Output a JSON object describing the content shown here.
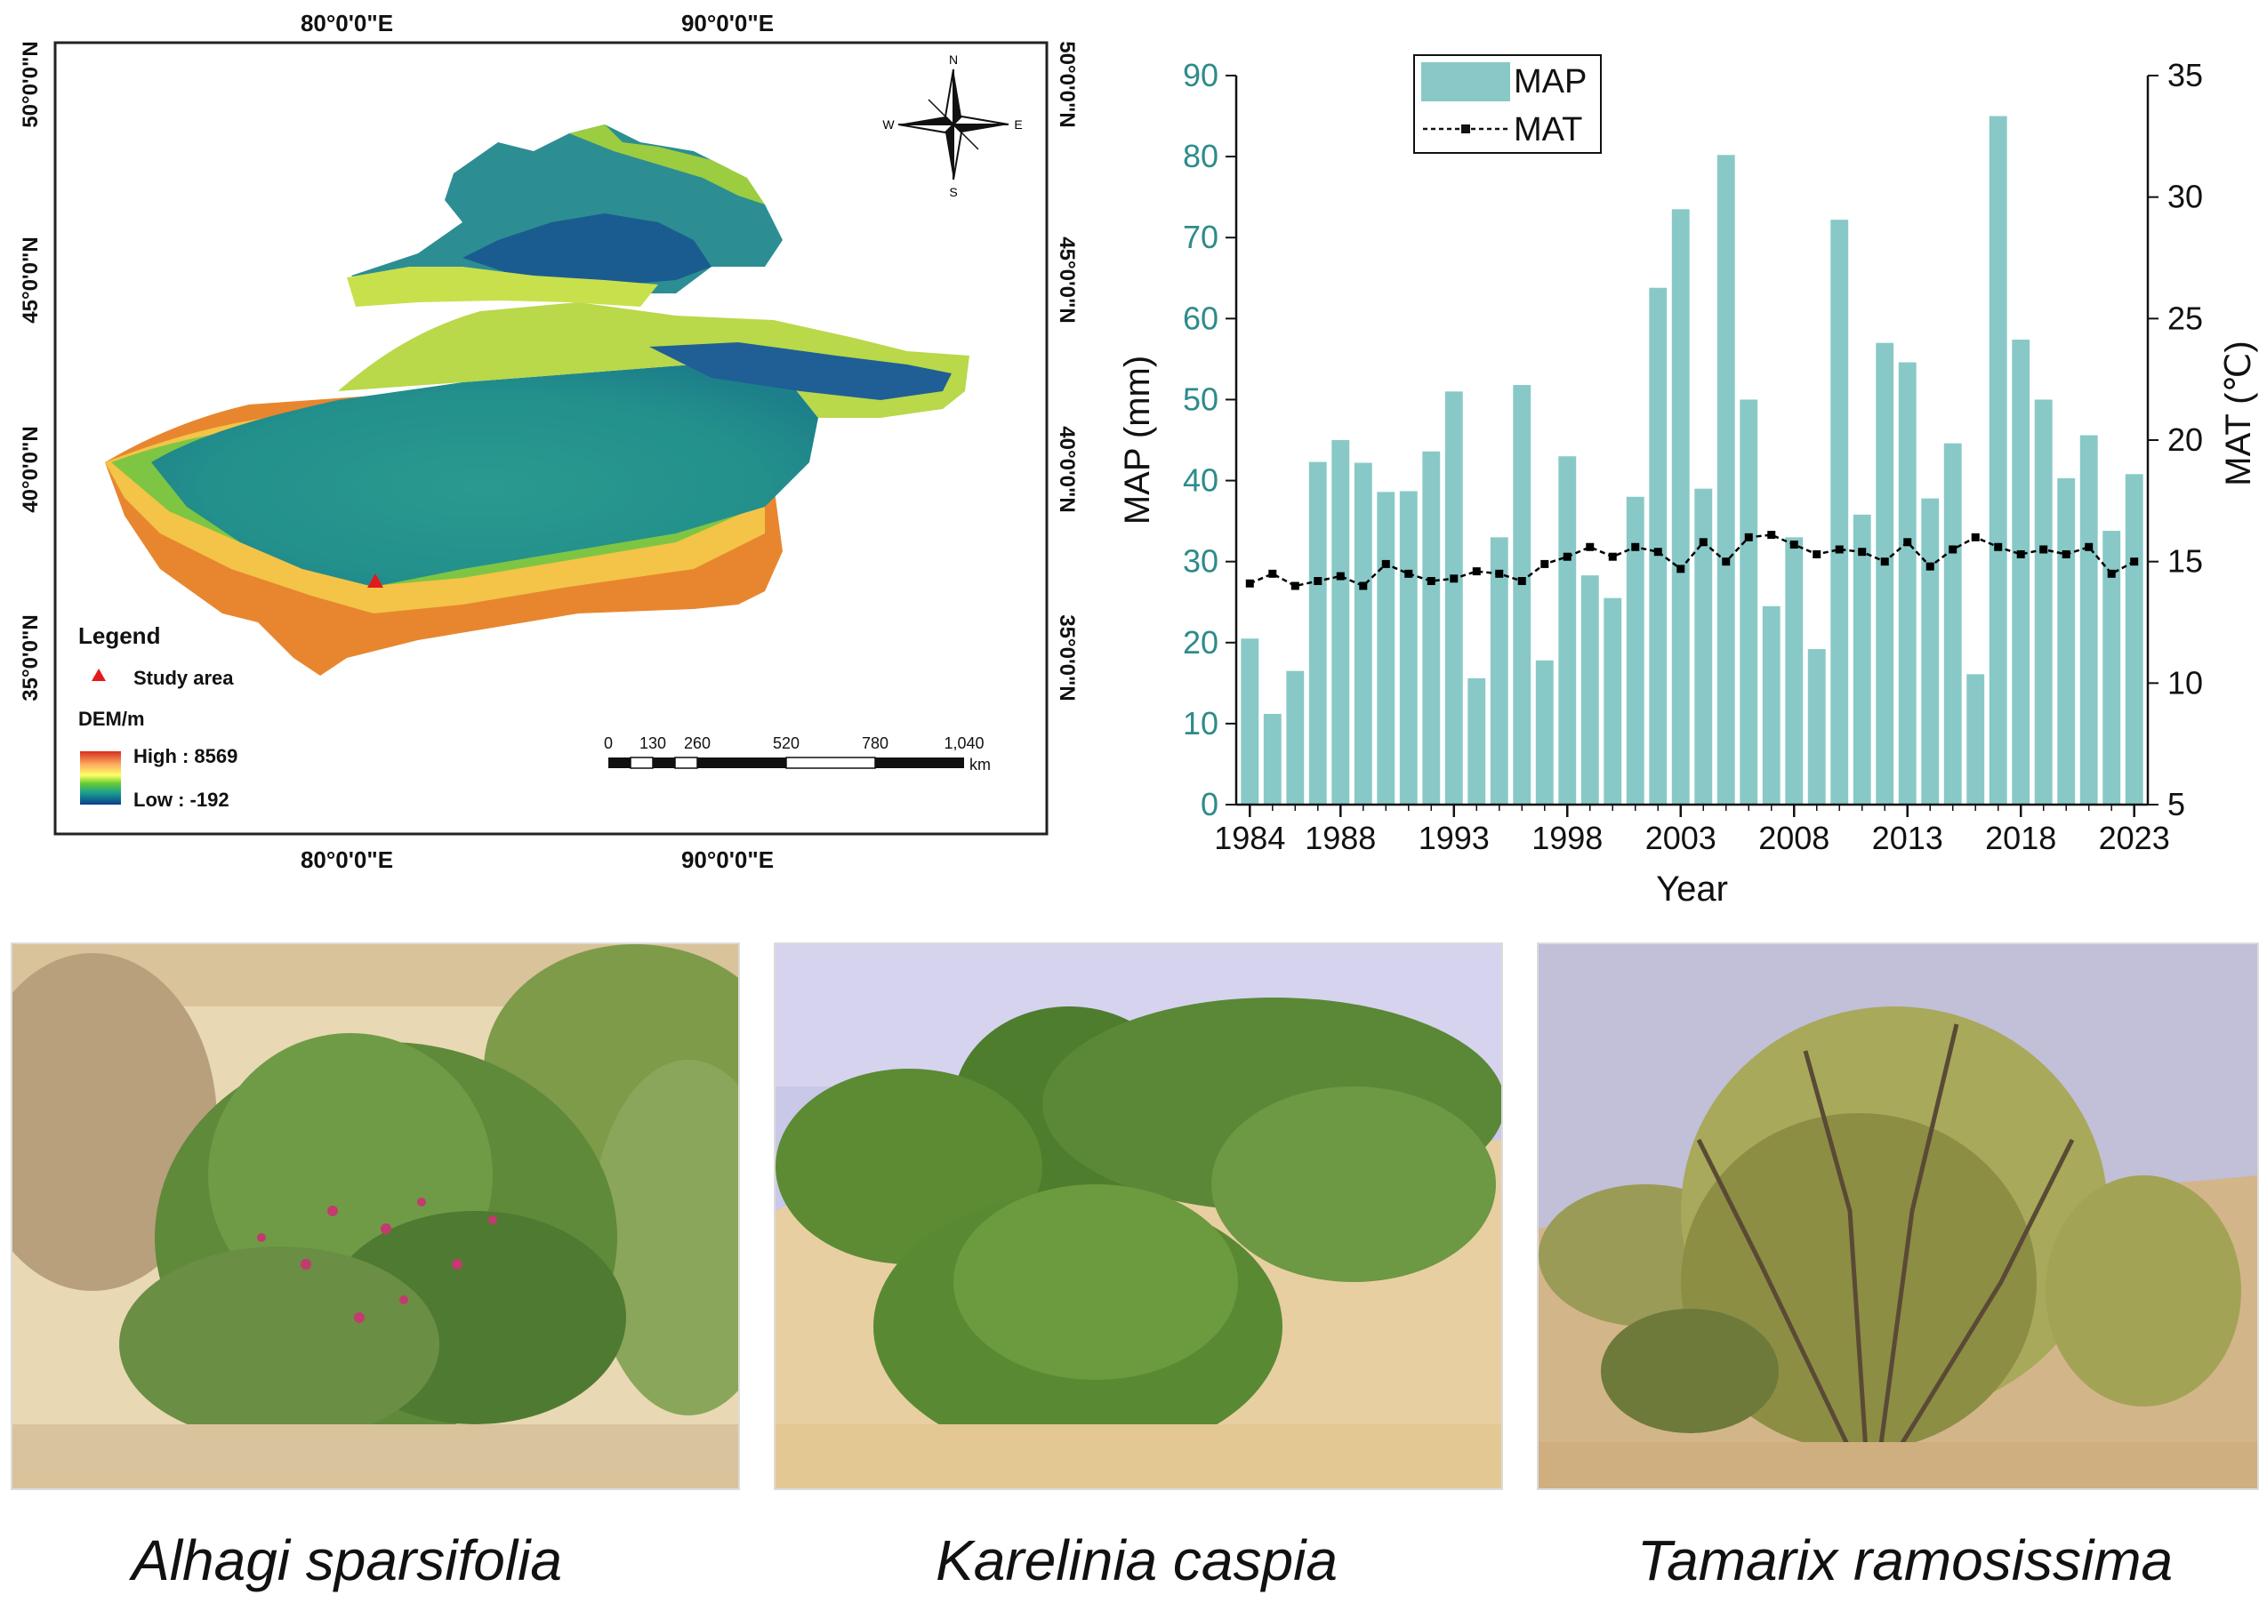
{
  "map": {
    "lon_labels": [
      "80°0'0\"E",
      "90°0'0\"E"
    ],
    "lat_labels": [
      "50°0'0\"N",
      "45°0'0\"N",
      "40°0'0\"N",
      "35°0'0\"N"
    ],
    "compass": {
      "n": "N",
      "s": "S",
      "e": "E",
      "w": "W"
    },
    "legend": {
      "title": "Legend",
      "study_area": "Study area",
      "dem_title": "DEM/m",
      "high": "High : 8569",
      "low": "Low : -192"
    },
    "scalebar": {
      "ticks": [
        "0",
        "130",
        "260",
        "520",
        "780",
        "1,040"
      ],
      "unit": "km"
    },
    "colors": {
      "marker": "#e31a1c",
      "low": "#0b3d8c",
      "high": "#d7301f"
    }
  },
  "chart_data": {
    "type": "bar",
    "x": [
      1984,
      1985,
      1986,
      1987,
      1988,
      1989,
      1990,
      1991,
      1992,
      1993,
      1994,
      1995,
      1996,
      1997,
      1998,
      1999,
      2000,
      2001,
      2002,
      2003,
      2004,
      2005,
      2006,
      2007,
      2008,
      2009,
      2010,
      2011,
      2012,
      2013,
      2014,
      2015,
      2016,
      2017,
      2018,
      2019,
      2020,
      2021,
      2022,
      2023
    ],
    "series": [
      {
        "name": "MAP",
        "axis": "left",
        "type": "bar",
        "color": "#88c9c7",
        "values": [
          20.5,
          11.2,
          16.5,
          42.3,
          45.0,
          42.2,
          38.6,
          38.7,
          43.6,
          51.0,
          15.6,
          33.0,
          51.8,
          17.8,
          43.0,
          28.3,
          25.5,
          38.0,
          63.8,
          73.5,
          39.0,
          80.2,
          50.0,
          24.5,
          33.0,
          19.2,
          72.2,
          35.8,
          57.0,
          54.6,
          37.8,
          44.6,
          16.1,
          85.0,
          57.4,
          50.0,
          40.3,
          45.6,
          33.8,
          40.8
        ]
      },
      {
        "name": "MAT",
        "axis": "right",
        "type": "line",
        "color": "#000000",
        "values": [
          14.1,
          14.5,
          14.0,
          14.2,
          14.4,
          14.0,
          14.9,
          14.5,
          14.2,
          14.3,
          14.6,
          14.5,
          14.2,
          14.9,
          15.2,
          15.6,
          15.2,
          15.6,
          15.4,
          14.7,
          15.8,
          15.0,
          16.0,
          16.1,
          15.7,
          15.3,
          15.5,
          15.4,
          15.0,
          15.8,
          14.8,
          15.5,
          16.0,
          15.6,
          15.3,
          15.5,
          15.3,
          15.6,
          14.5,
          15.0
        ]
      }
    ],
    "xticks": [
      "1984",
      "1988",
      "1993",
      "1998",
      "2003",
      "2008",
      "2013",
      "2018",
      "2023"
    ],
    "xlabel": "Year",
    "ylabel": "MAP (mm)",
    "y2label": "MAT (℃)",
    "ylim": [
      0,
      90
    ],
    "y2lim": [
      5,
      35
    ],
    "yticks": [
      "0",
      "10",
      "20",
      "30",
      "40",
      "50",
      "60",
      "70",
      "80",
      "90"
    ],
    "y2ticks": [
      "5",
      "10",
      "15",
      "20",
      "25",
      "30",
      "35"
    ],
    "legend_position": "top-left",
    "colors": {
      "axis_tick_text": "#2e8b8b"
    }
  },
  "photos": [
    {
      "caption": "Alhagi sparsifolia"
    },
    {
      "caption": "Karelinia caspia"
    },
    {
      "caption": "Tamarix ramosissima"
    }
  ]
}
